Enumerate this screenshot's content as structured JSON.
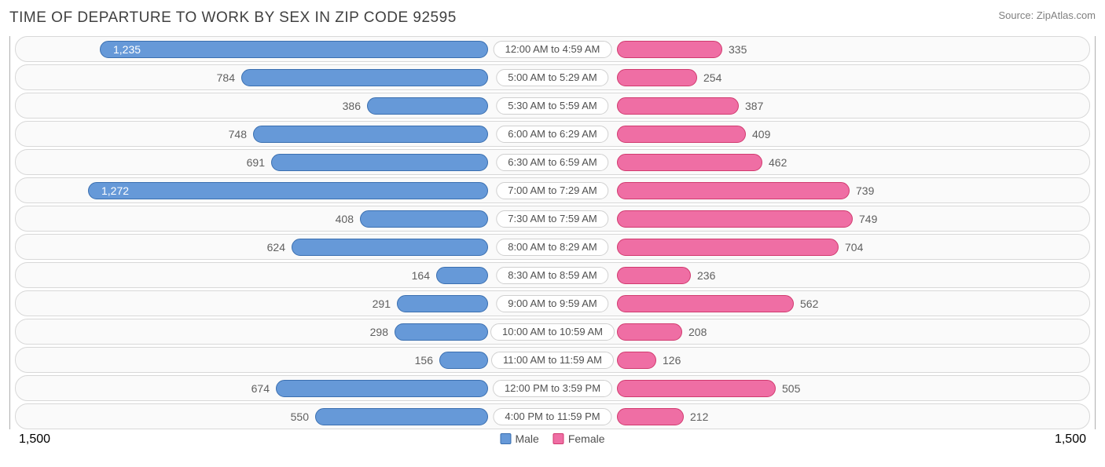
{
  "title": "TIME OF DEPARTURE TO WORK BY SEX IN ZIP CODE 92595",
  "source": "Source: ZipAtlas.com",
  "axis_max": 1500,
  "axis_label_left": "1,500",
  "axis_label_right": "1,500",
  "colors": {
    "male_fill": "#6699d8",
    "male_border": "#3a6fb0",
    "female_fill": "#ef6ea4",
    "female_border": "#d13a6f",
    "row_bg": "#fafafa",
    "row_border": "#d8d8d8",
    "text": "#606060"
  },
  "legend": {
    "male": "Male",
    "female": "Female"
  },
  "rows": [
    {
      "label": "12:00 AM to 4:59 AM",
      "male": 1235,
      "male_disp": "1,235",
      "female": 335,
      "female_disp": "335",
      "male_inside": true
    },
    {
      "label": "5:00 AM to 5:29 AM",
      "male": 784,
      "male_disp": "784",
      "female": 254,
      "female_disp": "254",
      "male_inside": false
    },
    {
      "label": "5:30 AM to 5:59 AM",
      "male": 386,
      "male_disp": "386",
      "female": 387,
      "female_disp": "387",
      "male_inside": false
    },
    {
      "label": "6:00 AM to 6:29 AM",
      "male": 748,
      "male_disp": "748",
      "female": 409,
      "female_disp": "409",
      "male_inside": false
    },
    {
      "label": "6:30 AM to 6:59 AM",
      "male": 691,
      "male_disp": "691",
      "female": 462,
      "female_disp": "462",
      "male_inside": false
    },
    {
      "label": "7:00 AM to 7:29 AM",
      "male": 1272,
      "male_disp": "1,272",
      "female": 739,
      "female_disp": "739",
      "male_inside": true
    },
    {
      "label": "7:30 AM to 7:59 AM",
      "male": 408,
      "male_disp": "408",
      "female": 749,
      "female_disp": "749",
      "male_inside": false
    },
    {
      "label": "8:00 AM to 8:29 AM",
      "male": 624,
      "male_disp": "624",
      "female": 704,
      "female_disp": "704",
      "male_inside": false
    },
    {
      "label": "8:30 AM to 8:59 AM",
      "male": 164,
      "male_disp": "164",
      "female": 236,
      "female_disp": "236",
      "male_inside": false
    },
    {
      "label": "9:00 AM to 9:59 AM",
      "male": 291,
      "male_disp": "291",
      "female": 562,
      "female_disp": "562",
      "male_inside": false
    },
    {
      "label": "10:00 AM to 10:59 AM",
      "male": 298,
      "male_disp": "298",
      "female": 208,
      "female_disp": "208",
      "male_inside": false
    },
    {
      "label": "11:00 AM to 11:59 AM",
      "male": 156,
      "male_disp": "156",
      "female": 126,
      "female_disp": "126",
      "male_inside": false
    },
    {
      "label": "12:00 PM to 3:59 PM",
      "male": 674,
      "male_disp": "674",
      "female": 505,
      "female_disp": "505",
      "male_inside": false
    },
    {
      "label": "4:00 PM to 11:59 PM",
      "male": 550,
      "male_disp": "550",
      "female": 212,
      "female_disp": "212",
      "male_inside": false
    }
  ]
}
